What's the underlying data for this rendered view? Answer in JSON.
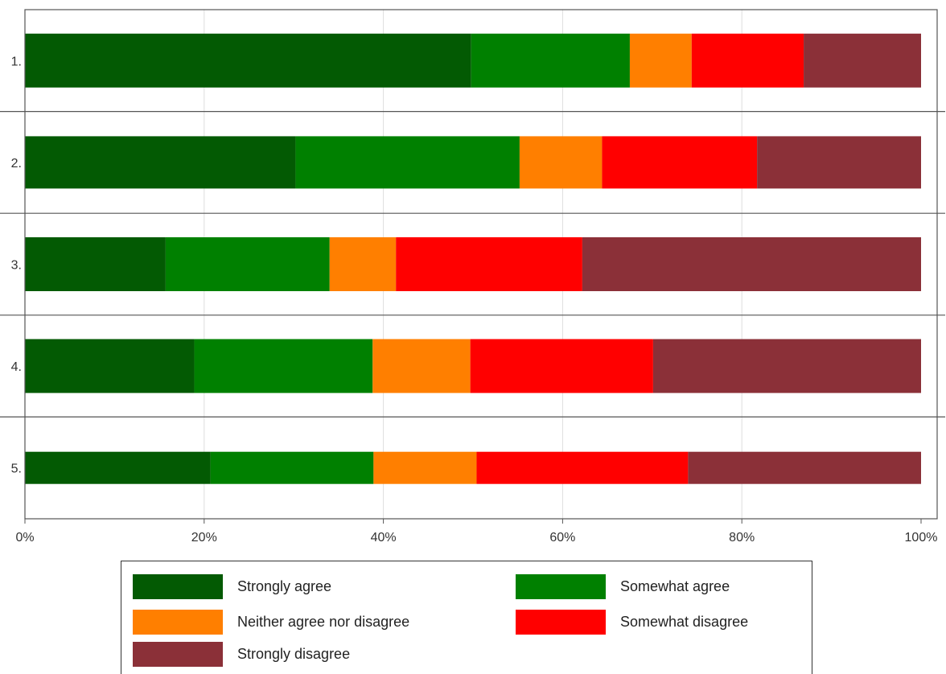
{
  "chart_data": {
    "type": "bar",
    "orientation": "horizontal",
    "stacked": true,
    "normalized": true,
    "categories": [
      "1.",
      "2.",
      "3.",
      "4.",
      "5."
    ],
    "xticks": [
      "0%",
      "20%",
      "40%",
      "60%",
      "80%",
      "100%"
    ],
    "xlim": [
      0,
      100
    ],
    "grid": true,
    "legend_position": "bottom",
    "series": [
      {
        "name": "Strongly agree",
        "color": "#035a03",
        "values": [
          49.8,
          30.2,
          15.7,
          18.9,
          20.7
        ]
      },
      {
        "name": "Somewhat agree",
        "color": "#008000",
        "values": [
          17.7,
          25.0,
          18.3,
          19.9,
          18.2
        ]
      },
      {
        "name": "Neither agree nor disagree",
        "color": "#ff7f00",
        "values": [
          6.9,
          9.2,
          7.4,
          10.9,
          11.5
        ]
      },
      {
        "name": "Somewhat disagree",
        "color": "#ff0000",
        "values": [
          12.5,
          17.3,
          20.8,
          20.4,
          23.6
        ]
      },
      {
        "name": "Strongly disagree",
        "color": "#8b3038",
        "values": [
          13.1,
          18.3,
          37.8,
          29.9,
          26.0
        ]
      }
    ]
  }
}
